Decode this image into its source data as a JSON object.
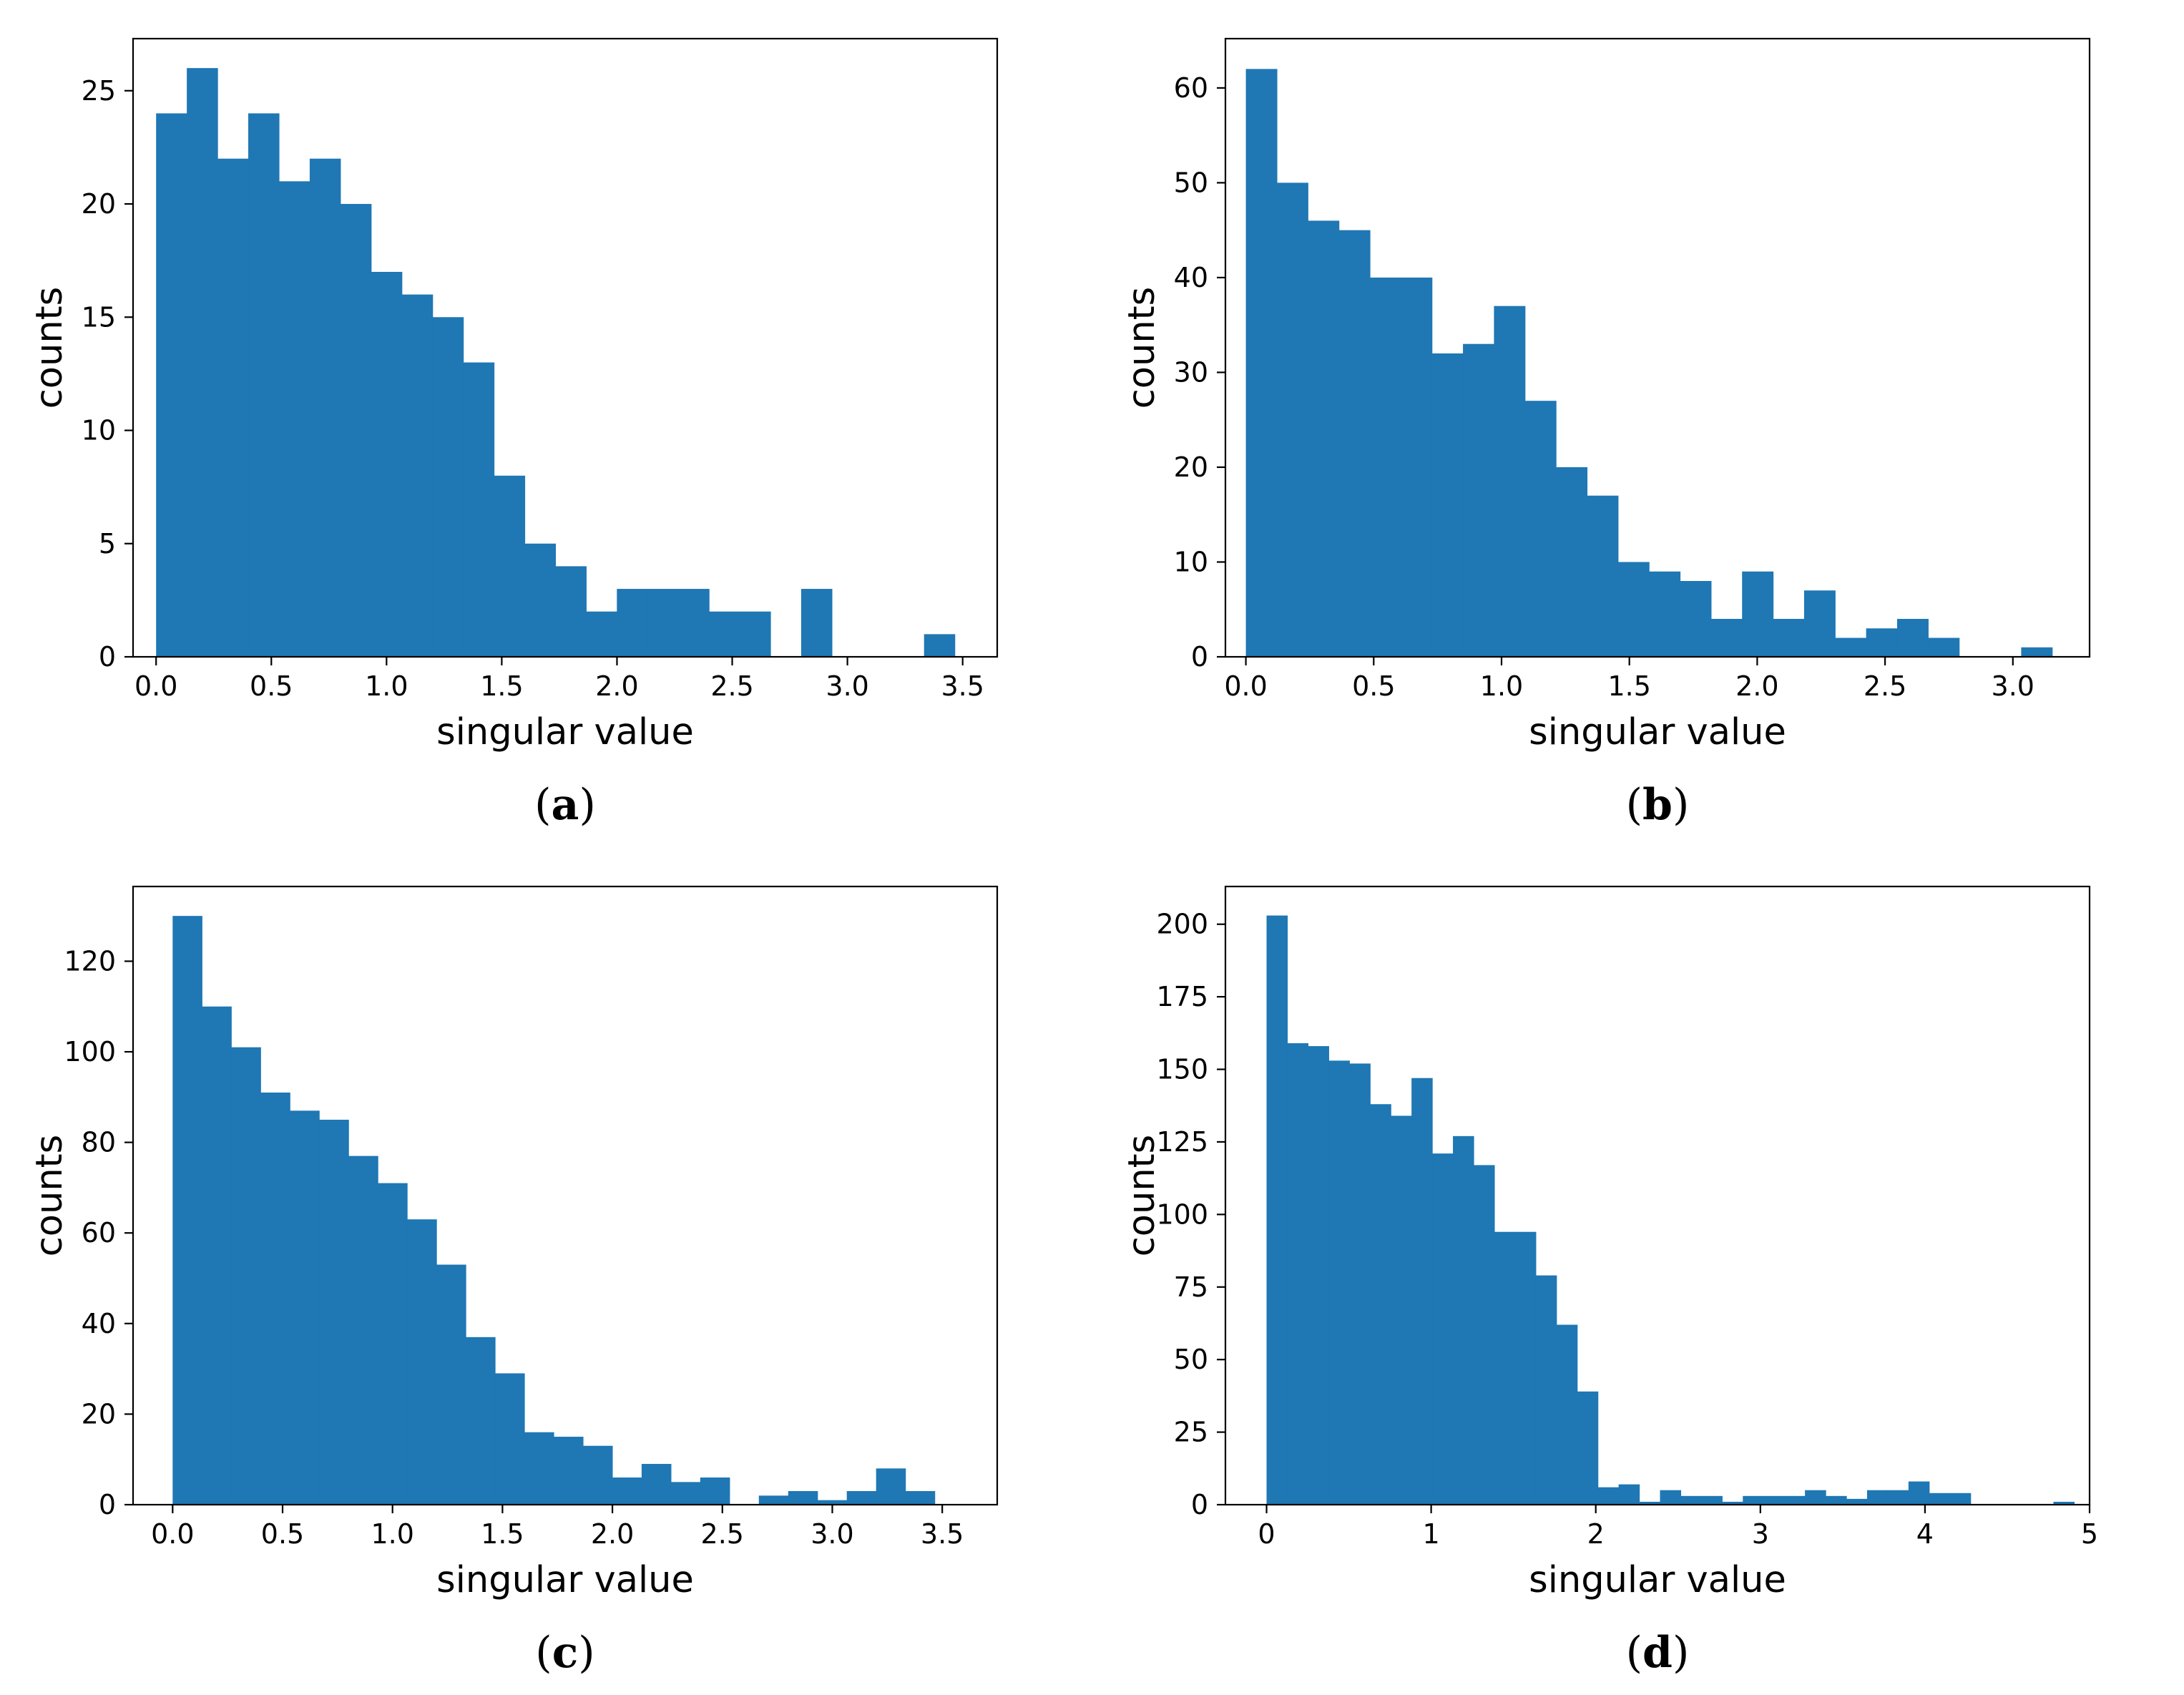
{
  "chart_data": [
    {
      "type": "bar",
      "panel": "(a)",
      "caption_letter": "a",
      "xlabel": "singular value",
      "ylabel": "counts",
      "xlim": [
        -0.1,
        3.65
      ],
      "ylim": [
        0,
        27.3
      ],
      "xticks": [
        0.0,
        0.5,
        1.0,
        1.5,
        2.0,
        2.5,
        3.0,
        3.5
      ],
      "xtick_labels": [
        "0.0",
        "0.5",
        "1.0",
        "1.5",
        "2.0",
        "2.5",
        "3.0",
        "3.5"
      ],
      "yticks": [
        0,
        5,
        10,
        15,
        20,
        25
      ],
      "ytick_labels": [
        "0",
        "5",
        "10",
        "15",
        "20",
        "25"
      ],
      "bin_start": 0.0,
      "bin_width": 0.1333,
      "values": [
        24,
        26,
        22,
        24,
        21,
        22,
        20,
        17,
        16,
        15,
        13,
        8,
        5,
        4,
        2,
        3,
        3,
        3,
        2,
        2,
        0,
        3,
        0,
        0,
        0,
        1
      ]
    },
    {
      "type": "bar",
      "panel": "(b)",
      "caption_letter": "b",
      "xlabel": "singular value",
      "ylabel": "counts",
      "xlim": [
        -0.08,
        3.3
      ],
      "ylim": [
        0,
        65.2
      ],
      "xticks": [
        0.0,
        0.5,
        1.0,
        1.5,
        2.0,
        2.5,
        3.0
      ],
      "xtick_labels": [
        "0.0",
        "0.5",
        "1.0",
        "1.5",
        "2.0",
        "2.5",
        "3.0"
      ],
      "yticks": [
        0,
        10,
        20,
        30,
        40,
        50,
        60
      ],
      "ytick_labels": [
        "0",
        "10",
        "20",
        "30",
        "40",
        "50",
        "60"
      ],
      "bin_start": 0.0,
      "bin_width": 0.1213,
      "values": [
        62,
        50,
        46,
        45,
        40,
        40,
        32,
        33,
        37,
        27,
        20,
        17,
        10,
        9,
        8,
        4,
        9,
        4,
        7,
        2,
        3,
        4,
        2,
        0,
        0,
        1
      ]
    },
    {
      "type": "bar",
      "panel": "(c)",
      "caption_letter": "c",
      "xlabel": "singular value",
      "ylabel": "counts",
      "xlim": [
        -0.18,
        3.75
      ],
      "ylim": [
        0,
        136.5
      ],
      "xticks": [
        0.0,
        0.5,
        1.0,
        1.5,
        2.0,
        2.5,
        3.0,
        3.5
      ],
      "xtick_labels": [
        "0.0",
        "0.5",
        "1.0",
        "1.5",
        "2.0",
        "2.5",
        "3.0",
        "3.5"
      ],
      "yticks": [
        0,
        20,
        40,
        60,
        80,
        100,
        120
      ],
      "ytick_labels": [
        "0",
        "20",
        "40",
        "60",
        "80",
        "100",
        "120"
      ],
      "bin_start": 0.0,
      "bin_width": 0.1333,
      "values": [
        130,
        110,
        101,
        91,
        87,
        85,
        77,
        71,
        63,
        53,
        37,
        29,
        16,
        15,
        13,
        6,
        9,
        5,
        6,
        0,
        2,
        3,
        1,
        3,
        8,
        3
      ]
    },
    {
      "type": "bar",
      "panel": "(d)",
      "caption_letter": "d",
      "xlabel": "singular value",
      "ylabel": "counts",
      "xlim": [
        -0.25,
        5.0
      ],
      "ylim": [
        0,
        213
      ],
      "xticks": [
        0,
        1,
        2,
        3,
        4,
        5
      ],
      "xtick_labels": [
        "0",
        "1",
        "2",
        "3",
        "4",
        "5"
      ],
      "yticks": [
        0,
        25,
        50,
        75,
        100,
        125,
        150,
        175,
        200
      ],
      "ytick_labels": [
        "0",
        "25",
        "50",
        "75",
        "100",
        "125",
        "150",
        "175",
        "200"
      ],
      "bin_start": 0.0,
      "bin_width": 0.1258,
      "values": [
        203,
        159,
        158,
        153,
        152,
        138,
        134,
        147,
        121,
        127,
        117,
        94,
        94,
        79,
        62,
        39,
        6,
        7,
        1,
        5,
        3,
        3,
        1,
        3,
        3,
        3,
        5,
        3,
        2,
        5,
        5,
        8,
        4,
        4,
        0,
        0,
        0,
        0,
        1,
        0
      ]
    }
  ]
}
